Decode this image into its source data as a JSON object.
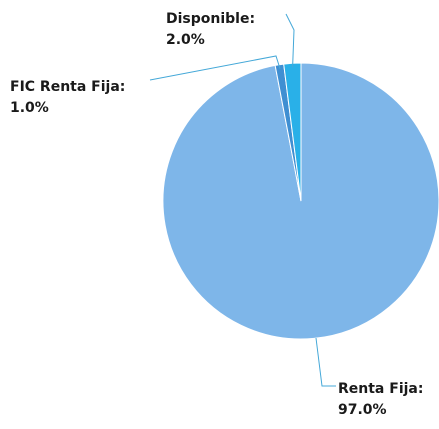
{
  "chart_data": {
    "type": "pie",
    "title": "",
    "slices": [
      {
        "label": "Renta Fija:",
        "value": 97.0,
        "value_label": "97.0%",
        "color": "#7eb6e9"
      },
      {
        "label": "FIC Renta Fija:",
        "value": 1.0,
        "value_label": "1.0%",
        "color": "#3f8fd2"
      },
      {
        "label": "Disponible:",
        "value": 2.0,
        "value_label": "2.0%",
        "color": "#29b0e8"
      }
    ],
    "leader_line_color": "#44a8d8",
    "legend": "none"
  }
}
